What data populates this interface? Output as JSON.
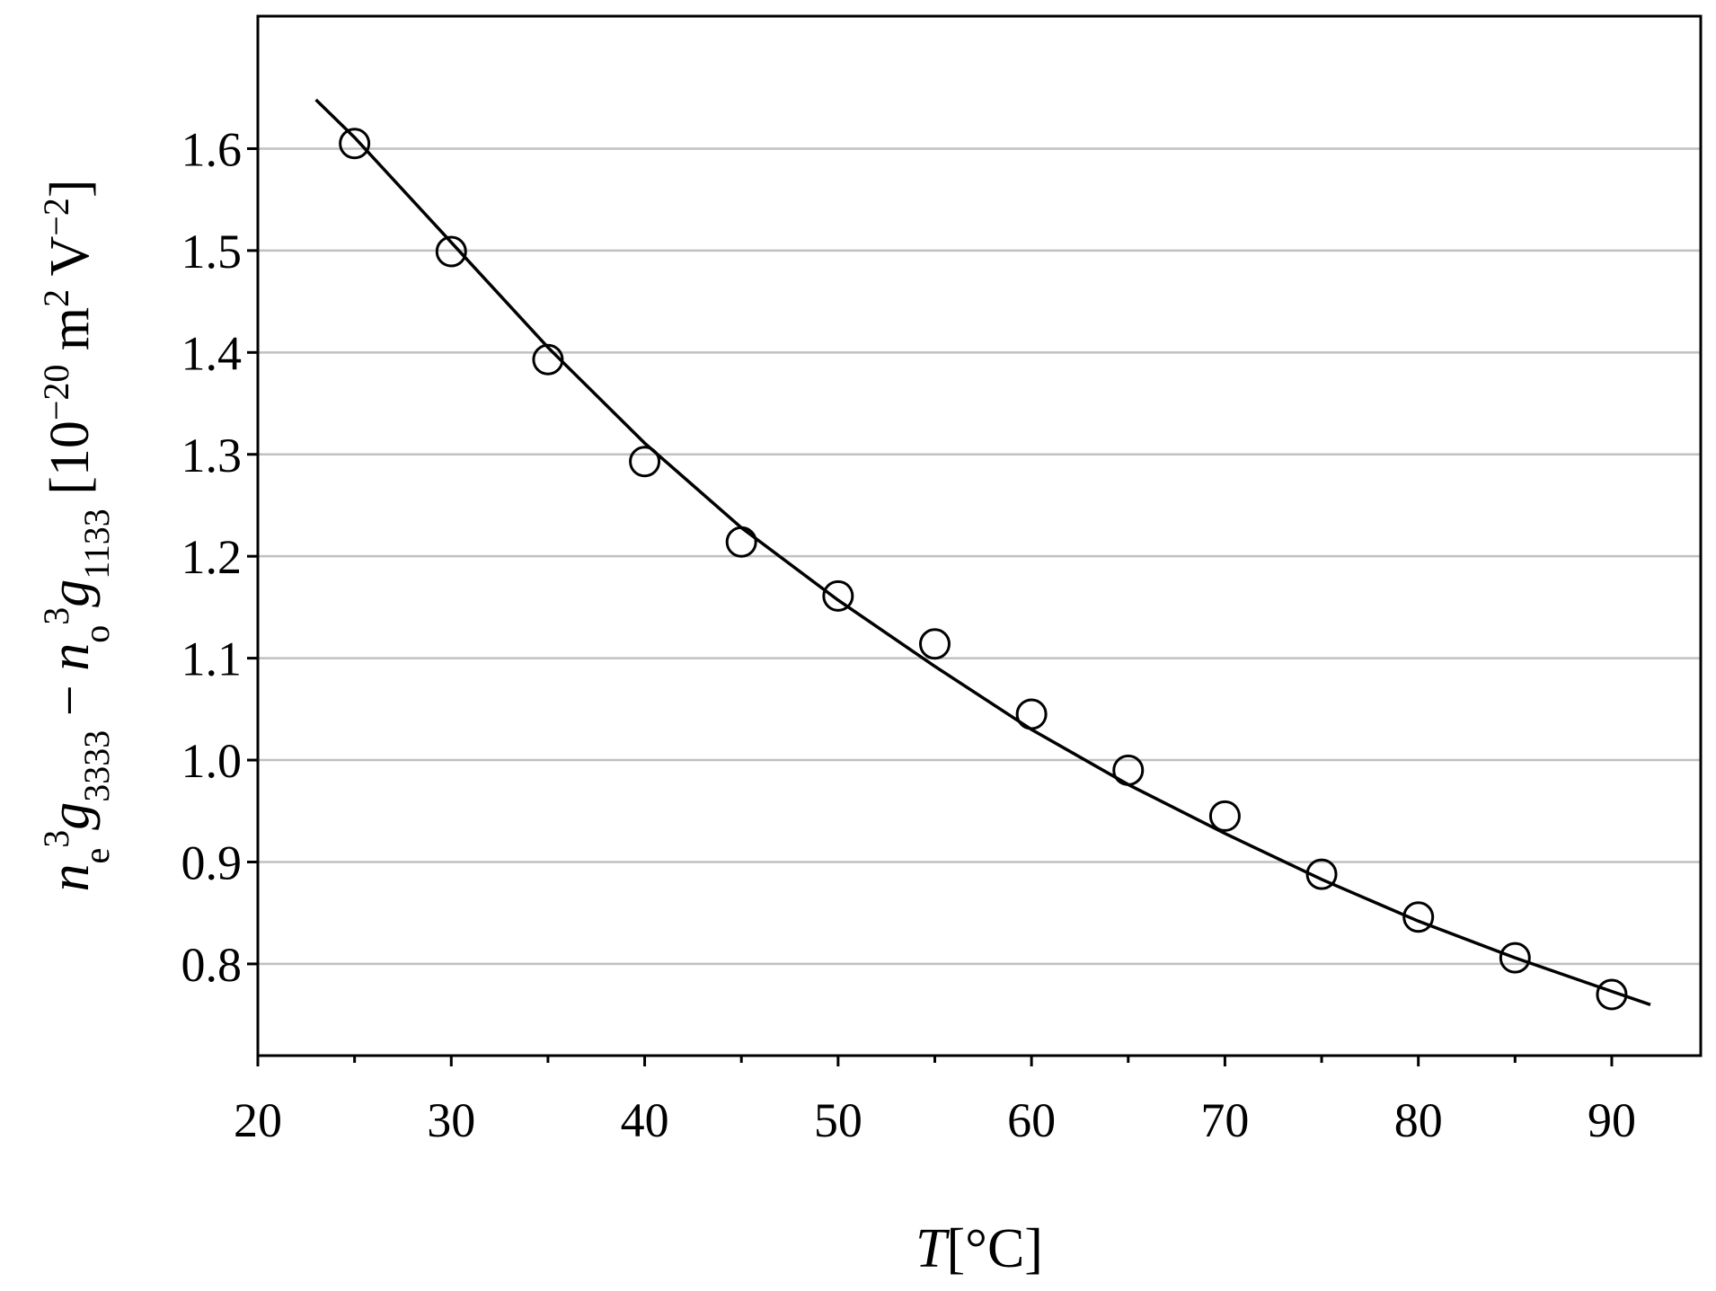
{
  "chart_data": {
    "type": "scatter",
    "title": "",
    "xlabel": {
      "var": "T",
      "unit": "[°C]"
    },
    "ylabel": {
      "n_e": "n",
      "n_e_sub": "e",
      "n_e_sup": "3",
      "g1": "g",
      "g1_sub": "3333",
      "minus": " − ",
      "n_o": "n",
      "n_o_sub": "o",
      "n_o_sup": "3",
      "g2": "g",
      "g2_sub": "1133",
      "unit_open": " [10",
      "unit_exp": "−20",
      "unit_m": " m",
      "unit_m_sup": "2",
      "unit_v": " V",
      "unit_v_sup": "−2",
      "unit_close": "]"
    },
    "xlim": [
      20,
      94.6
    ],
    "ylim": [
      0.71,
      1.73
    ],
    "xticks": [
      20,
      30,
      40,
      50,
      60,
      70,
      80,
      90
    ],
    "xminor": [
      25,
      35,
      45,
      55,
      65,
      75,
      85
    ],
    "yticks": [
      0.8,
      0.9,
      1.0,
      1.1,
      1.2,
      1.3,
      1.4,
      1.5,
      1.6
    ],
    "ytick_labels": [
      "0.8",
      "0.9",
      "1.0",
      "1.1",
      "1.2",
      "1.3",
      "1.4",
      "1.5",
      "1.6"
    ],
    "grid": "horizontal",
    "series": [
      {
        "marker": "open-circle",
        "x": [
          25,
          30,
          35,
          40,
          45,
          50,
          55,
          60,
          65,
          70,
          75,
          80,
          85,
          90
        ],
        "y": [
          1.605,
          1.499,
          1.393,
          1.293,
          1.214,
          1.161,
          1.114,
          1.045,
          0.99,
          0.945,
          0.888,
          0.846,
          0.806,
          0.77
        ]
      },
      {
        "marker": "line",
        "x": [
          23,
          25,
          30,
          35,
          40,
          45,
          50,
          55,
          60,
          65,
          70,
          75,
          80,
          85,
          90,
          92
        ],
        "y": [
          1.648,
          1.611,
          1.508,
          1.405,
          1.311,
          1.228,
          1.157,
          1.092,
          1.03,
          0.976,
          0.928,
          0.883,
          0.842,
          0.806,
          0.773,
          0.76
        ]
      }
    ]
  }
}
